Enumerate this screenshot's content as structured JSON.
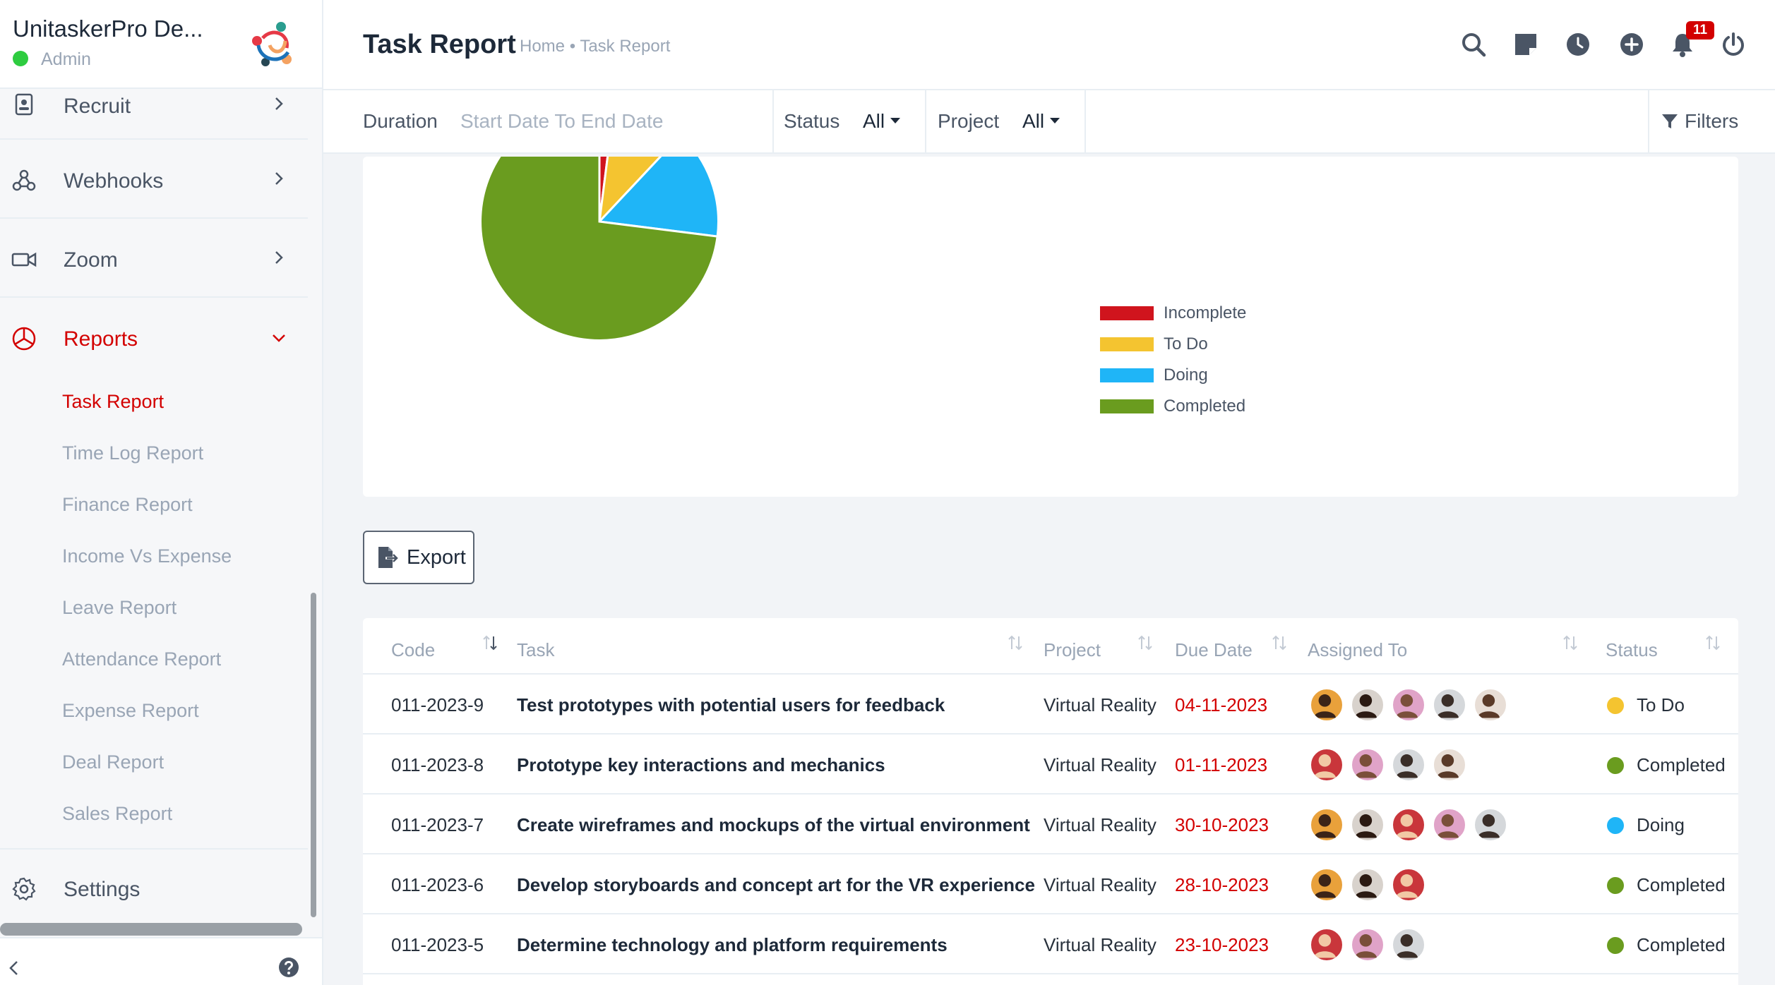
{
  "brand": {
    "name": "UnitaskerPro De...",
    "role": "Admin"
  },
  "sidebar": {
    "items": [
      {
        "label": "Recruit",
        "icon": "id-badge-icon"
      },
      {
        "label": "Webhooks",
        "icon": "webhook-icon"
      },
      {
        "label": "Zoom",
        "icon": "video-camera-icon"
      },
      {
        "label": "Reports",
        "icon": "pie-chart-icon",
        "active": true
      },
      {
        "label": "Settings",
        "icon": "gear-icon"
      }
    ],
    "report_subitems": [
      "Task Report",
      "Time Log Report",
      "Finance Report",
      "Income Vs Expense",
      "Leave Report",
      "Attendance Report",
      "Expense Report",
      "Deal Report",
      "Sales Report"
    ]
  },
  "header": {
    "title": "Task Report",
    "breadcrumb": "Home • Task Report",
    "notification_count": "11"
  },
  "filters": {
    "duration_label": "Duration",
    "duration_placeholder": "Start Date To End Date",
    "status_label": "Status",
    "status_value": "All",
    "project_label": "Project",
    "project_value": "All",
    "filters_label": "Filters"
  },
  "chart_data": {
    "type": "pie",
    "categories": [
      "Incomplete",
      "To Do",
      "Doing",
      "Completed"
    ],
    "values": [
      2,
      10,
      15,
      73
    ],
    "colors": [
      "#d0141d",
      "#f4c430",
      "#1fb5f7",
      "#6a9c1f"
    ],
    "legend_position": "right"
  },
  "export_label": "Export",
  "table": {
    "columns": [
      "Code",
      "Task",
      "Project",
      "Due Date",
      "Assigned To",
      "Status"
    ],
    "rows": [
      {
        "code": "011-2023-9",
        "task": "Test prototypes with potential users for feedback",
        "project": "Virtual Reality",
        "due": "04-11-2023",
        "status": "To Do",
        "status_color": "#f4c430",
        "avatars": 5
      },
      {
        "code": "011-2023-8",
        "task": "Prototype key interactions and mechanics",
        "project": "Virtual Reality",
        "due": "01-11-2023",
        "status": "Completed",
        "status_color": "#6a9c1f",
        "avatars": 4
      },
      {
        "code": "011-2023-7",
        "task": "Create wireframes and mockups of the virtual environment",
        "project": "Virtual Reality",
        "due": "30-10-2023",
        "status": "Doing",
        "status_color": "#1fb5f7",
        "avatars": 5
      },
      {
        "code": "011-2023-6",
        "task": "Develop storyboards and concept art for the VR experience",
        "project": "Virtual Reality",
        "due": "28-10-2023",
        "status": "Completed",
        "status_color": "#6a9c1f",
        "avatars": 3
      },
      {
        "code": "011-2023-5",
        "task": "Determine technology and platform requirements",
        "project": "Virtual Reality",
        "due": "23-10-2023",
        "status": "Completed",
        "status_color": "#6a9c1f",
        "avatars": 3
      }
    ]
  }
}
